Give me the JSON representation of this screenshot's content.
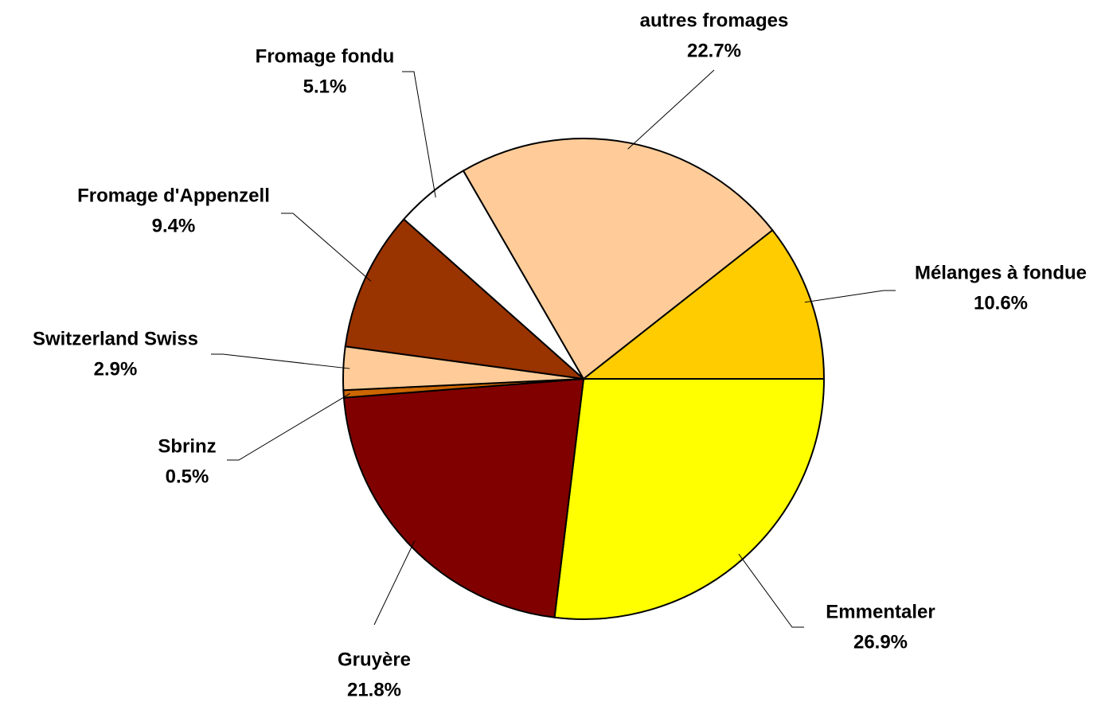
{
  "chart_data": {
    "type": "pie",
    "categories": [
      "Emmentaler",
      "Gruyère",
      "Sbrinz",
      "Switzerland Swiss",
      "Fromage d'Appenzell",
      "Fromage fondu",
      "autres fromages",
      "Mélanges à fondue"
    ],
    "values": [
      26.9,
      21.8,
      0.5,
      2.9,
      9.4,
      5.1,
      22.7,
      10.6
    ],
    "value_labels": [
      "26.9%",
      "21.8%",
      "0.5%",
      "2.9%",
      "9.4%",
      "5.1%",
      "22.7%",
      "10.6%"
    ],
    "colors": [
      "#ffff00",
      "#800000",
      "#cc6600",
      "#ffcc99",
      "#993300",
      "#ffffff",
      "#ffcc99",
      "#ffcc00"
    ]
  }
}
